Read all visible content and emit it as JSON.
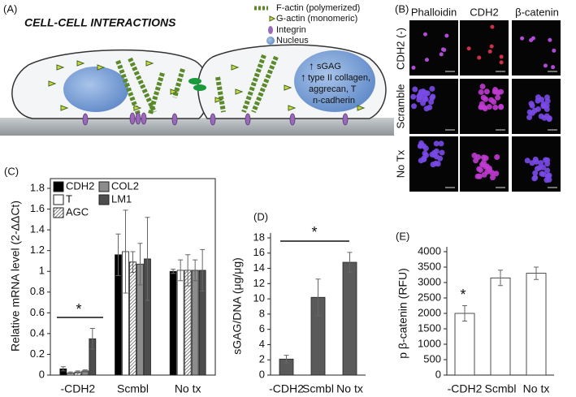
{
  "panel_a": {
    "label": "(A)",
    "title": "CELL-CELL INTERACTIONS",
    "legend": [
      "F-actin (polymerized)",
      "G-actin (monomeric)",
      "Integrin",
      "Nucleus"
    ],
    "nucleus_text": [
      "sGAG",
      "type II collagen,",
      "aggrecan, T",
      "n-cadherin"
    ]
  },
  "panel_b": {
    "label": "(B)",
    "columns": [
      "Phalloidin",
      "CDH2",
      "β-catenin"
    ],
    "rows": [
      "CDH2 (-)",
      "Scramble",
      "No Tx"
    ]
  },
  "chart_data": [
    {
      "type": "bar",
      "panel": "(C)",
      "ylabel": "Relative mRNA level (2-ΔΔCt)",
      "annotation": "*",
      "categories": [
        "-CDH2",
        "Scmbl",
        "No tx"
      ],
      "series": [
        {
          "name": "CDH2",
          "color": "#000000",
          "values": [
            0.06,
            1.16,
            1.0
          ],
          "errors": [
            0.02,
            0.2,
            0.02
          ]
        },
        {
          "name": "T",
          "color": "#ffffff",
          "values": [
            0.02,
            1.19,
            1.01
          ],
          "errors": [
            0.01,
            0.4,
            0.1
          ]
        },
        {
          "name": "AGC",
          "color": "#ffffff",
          "hatch": true,
          "values": [
            0.03,
            1.09,
            1.01
          ],
          "errors": [
            0.01,
            0.1,
            0.15
          ]
        },
        {
          "name": "COL2",
          "color": "#8c8c8c",
          "values": [
            0.04,
            1.07,
            1.01
          ],
          "errors": [
            0.01,
            0.2,
            0.1
          ]
        },
        {
          "name": "LM1",
          "color": "#4d4d4d",
          "values": [
            0.35,
            1.12,
            1.01
          ],
          "errors": [
            0.1,
            0.4,
            0.2
          ]
        }
      ],
      "ylim": [
        0,
        1.8
      ],
      "yticks": [
        0,
        0.2,
        0.4,
        0.6,
        0.8,
        1,
        1.2,
        1.4,
        1.6,
        1.8
      ]
    },
    {
      "type": "bar",
      "panel": "(D)",
      "ylabel": "sGAG/DNA (μg/μg)",
      "annotation": "*",
      "categories": [
        "-CDH2",
        "Scmbl",
        "No tx"
      ],
      "series": [
        {
          "color": "#5a5a5a",
          "values": [
            2.1,
            10.2,
            14.8
          ],
          "errors": [
            0.5,
            2.4,
            1.3
          ]
        }
      ],
      "ylim": [
        0,
        18
      ],
      "yticks": [
        0,
        2,
        4,
        6,
        8,
        10,
        12,
        14,
        16,
        18
      ]
    },
    {
      "type": "bar",
      "panel": "(E)",
      "ylabel": "p β-catenin (RFU)",
      "annotation": "*",
      "categories": [
        "-CDH2",
        "Scmbl",
        "No tx"
      ],
      "series": [
        {
          "color": "#ffffff",
          "values": [
            2000,
            3150,
            3300
          ],
          "errors": [
            250,
            250,
            200
          ]
        }
      ],
      "ylim": [
        0,
        4000
      ],
      "yticks": [
        0,
        500,
        1000,
        1500,
        2000,
        2500,
        3000,
        3500,
        4000
      ]
    }
  ]
}
